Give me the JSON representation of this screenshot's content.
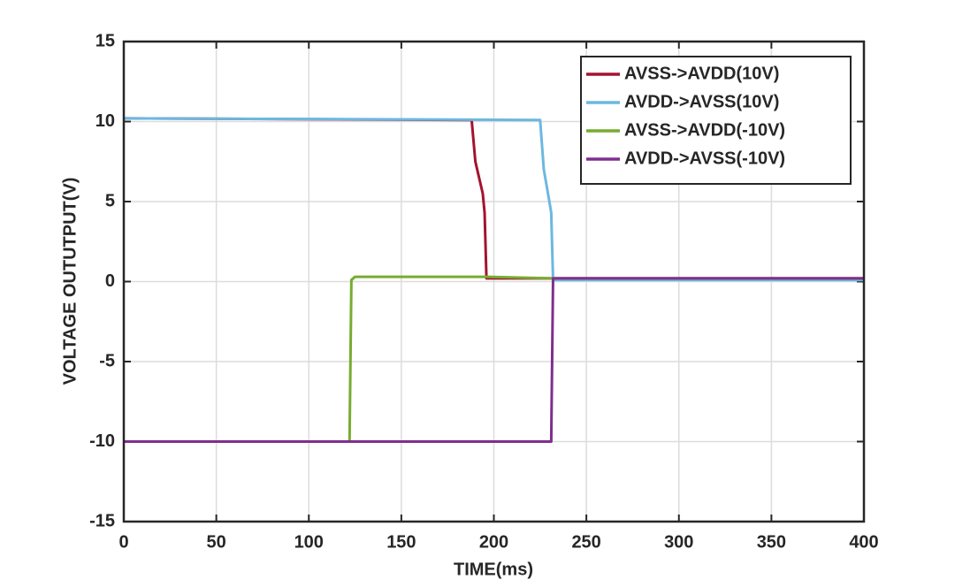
{
  "chart_data": {
    "type": "line",
    "x_label": "TIME(ms)",
    "y_label": "VOLTAGE OUTUTPUT(V)",
    "xlim": [
      0,
      400
    ],
    "xticks": [
      0,
      50,
      100,
      150,
      200,
      250,
      300,
      350,
      400
    ],
    "ylim": [
      -15,
      15
    ],
    "yticks": [
      -15,
      -10,
      -5,
      0,
      5,
      10,
      15
    ],
    "grid": true,
    "legend": "upper right",
    "series": [
      {
        "name": "AVSS->AVDD(10V)",
        "color": "#a2142f",
        "x": [
          0,
          188,
          190,
          194,
          195,
          196,
          400
        ],
        "values": [
          10.2,
          10.1,
          7.5,
          5.5,
          4.3,
          0.2,
          0.2
        ]
      },
      {
        "name": "AVDD->AVSS(10V)",
        "color": "#6cb8e0",
        "x": [
          0,
          225,
          227,
          230,
          231,
          232,
          400
        ],
        "values": [
          10.2,
          10.1,
          7,
          5,
          4.3,
          0.1,
          0.1
        ]
      },
      {
        "name": "AVSS->AVDD(-10V)",
        "color": "#77ac30",
        "x": [
          0,
          122,
          123,
          125,
          196,
          232,
          400
        ],
        "values": [
          -10,
          -10,
          0.1,
          0.3,
          0.3,
          0.2,
          0.2
        ]
      },
      {
        "name": "AVDD->AVSS(-10V)",
        "color": "#7e2f8e",
        "x": [
          0,
          231,
          232,
          400
        ],
        "values": [
          -10,
          -10,
          0.2,
          0.2
        ]
      }
    ]
  }
}
